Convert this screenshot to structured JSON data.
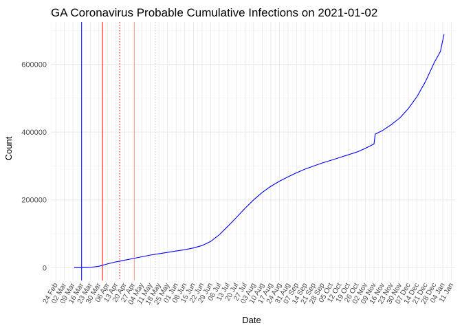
{
  "chart_data": {
    "type": "line",
    "title": "GA Coronavirus Probable Cumulative Infections on 2021-01-02",
    "xlabel": "Date",
    "ylabel": "Count",
    "x_type": "date",
    "x_range": [
      "2020-02-20",
      "2021-01-14"
    ],
    "ylim": [
      -38000,
      725000
    ],
    "grid": true,
    "legend": "none",
    "y_ticks": [
      0,
      200000,
      400000,
      600000
    ],
    "y_tick_labels": [
      "0",
      "200000",
      "400000",
      "600000"
    ],
    "x_ticks": [
      "2020-02-24",
      "2020-03-02",
      "2020-03-09",
      "2020-03-16",
      "2020-03-23",
      "2020-03-30",
      "2020-04-06",
      "2020-04-13",
      "2020-04-20",
      "2020-04-27",
      "2020-05-04",
      "2020-05-11",
      "2020-05-18",
      "2020-05-25",
      "2020-06-01",
      "2020-06-08",
      "2020-06-15",
      "2020-06-22",
      "2020-06-29",
      "2020-07-06",
      "2020-07-13",
      "2020-07-20",
      "2020-07-27",
      "2020-08-03",
      "2020-08-10",
      "2020-08-17",
      "2020-08-24",
      "2020-08-31",
      "2020-09-07",
      "2020-09-14",
      "2020-09-21",
      "2020-09-28",
      "2020-10-05",
      "2020-10-12",
      "2020-10-19",
      "2020-10-26",
      "2020-11-02",
      "2020-11-09",
      "2020-11-16",
      "2020-11-23",
      "2020-11-30",
      "2020-12-07",
      "2020-12-14",
      "2020-12-21",
      "2020-12-28",
      "2021-01-04",
      "2021-01-11"
    ],
    "x_tick_labels": [
      "24 Feb",
      "02 Mar",
      "09 Mar",
      "16 Mar",
      "23 Mar",
      "30 Mar",
      "06 Apr",
      "13 Apr",
      "20 Apr",
      "27 Apr",
      "04 May",
      "11 May",
      "18 May",
      "25 May",
      "01 Jun",
      "08 Jun",
      "15 Jun",
      "22 Jun",
      "29 Jun",
      "06 Jul",
      "13 Jul",
      "20 Jul",
      "27 Jul",
      "03 Aug",
      "10 Aug",
      "17 Aug",
      "24 Aug",
      "31 Aug",
      "07 Sep",
      "14 Sep",
      "21 Sep",
      "28 Sep",
      "05 Oct",
      "12 Oct",
      "19 Oct",
      "26 Oct",
      "02 Nov",
      "09 Nov",
      "16 Nov",
      "23 Nov",
      "30 Nov",
      "07 Dec",
      "14 Dec",
      "21 Dec",
      "28 Dec",
      "04 Jan",
      "11 Jan"
    ],
    "series": [
      {
        "color": "#0000ff",
        "points": [
          [
            "2020-03-10",
            0
          ],
          [
            "2020-03-14",
            0
          ],
          [
            "2020-03-23",
            500
          ],
          [
            "2020-03-30",
            4000
          ],
          [
            "2020-04-06",
            11000
          ],
          [
            "2020-04-13",
            17000
          ],
          [
            "2020-04-20",
            22000
          ],
          [
            "2020-04-27",
            27000
          ],
          [
            "2020-05-04",
            32000
          ],
          [
            "2020-05-11",
            37000
          ],
          [
            "2020-05-18",
            41000
          ],
          [
            "2020-05-25",
            45000
          ],
          [
            "2020-06-01",
            49000
          ],
          [
            "2020-06-08",
            53000
          ],
          [
            "2020-06-15",
            58000
          ],
          [
            "2020-06-22",
            65000
          ],
          [
            "2020-06-29",
            77000
          ],
          [
            "2020-07-06",
            97000
          ],
          [
            "2020-07-13",
            122000
          ],
          [
            "2020-07-20",
            148000
          ],
          [
            "2020-07-27",
            175000
          ],
          [
            "2020-08-03",
            200000
          ],
          [
            "2020-08-10",
            222000
          ],
          [
            "2020-08-17",
            240000
          ],
          [
            "2020-08-24",
            255000
          ],
          [
            "2020-08-31",
            268000
          ],
          [
            "2020-09-07",
            280000
          ],
          [
            "2020-09-14",
            291000
          ],
          [
            "2020-09-21",
            300000
          ],
          [
            "2020-09-28",
            309000
          ],
          [
            "2020-10-05",
            317000
          ],
          [
            "2020-10-12",
            325000
          ],
          [
            "2020-10-19",
            333000
          ],
          [
            "2020-10-26",
            341000
          ],
          [
            "2020-11-02",
            352000
          ],
          [
            "2020-11-09",
            365000
          ],
          [
            "2020-11-10",
            394000
          ],
          [
            "2020-11-16",
            405000
          ],
          [
            "2020-11-23",
            422000
          ],
          [
            "2020-11-30",
            442000
          ],
          [
            "2020-12-07",
            470000
          ],
          [
            "2020-12-14",
            505000
          ],
          [
            "2020-12-21",
            550000
          ],
          [
            "2020-12-28",
            605000
          ],
          [
            "2021-01-02",
            638000
          ],
          [
            "2021-01-05",
            689000
          ]
        ]
      }
    ],
    "vertical_lines": [
      {
        "date": "2020-03-16",
        "color": "#0000ff",
        "style": "solid"
      },
      {
        "date": "2020-04-02",
        "color": "#ff0000",
        "style": "solid"
      },
      {
        "date": "2020-04-16",
        "color": "#ff0000",
        "style": "dotted"
      },
      {
        "date": "2020-04-28",
        "color": "#ff9999",
        "style": "solid"
      },
      {
        "date": "2020-05-15",
        "color": "#ffc0c0",
        "style": "dotted"
      }
    ]
  }
}
